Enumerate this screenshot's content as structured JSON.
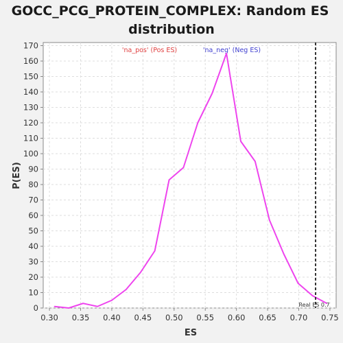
{
  "chart_data": {
    "type": "line",
    "title_line1": "GOCC_PCG_PROTEIN_COMPLEX: Random ES",
    "title_line2": "distribution",
    "xlabel": "ES",
    "ylabel": "P(ES)",
    "xlim": [
      0.29,
      0.76
    ],
    "ylim": [
      0,
      172
    ],
    "xticks": [
      0.3,
      0.35,
      0.4,
      0.45,
      0.5,
      0.55,
      0.6,
      0.65,
      0.7,
      0.75
    ],
    "xtick_labels": [
      "0.30",
      "0.35",
      "0.40",
      "0.45",
      "0.50",
      "0.55",
      "0.60",
      "0.65",
      "0.70",
      "0.75"
    ],
    "yticks": [
      0,
      10,
      20,
      30,
      40,
      50,
      60,
      70,
      80,
      90,
      100,
      110,
      120,
      130,
      140,
      150,
      160,
      170
    ],
    "ytick_labels": [
      "0",
      "10",
      "20",
      "30",
      "40",
      "50",
      "60",
      "70",
      "80",
      "90",
      "100",
      "110",
      "120",
      "130",
      "140",
      "150",
      "160",
      "170"
    ],
    "grid": true,
    "series": [
      {
        "color": "#ee44ee",
        "x": [
          0.308,
          0.331,
          0.354,
          0.377,
          0.4,
          0.423,
          0.446,
          0.469,
          0.492,
          0.515,
          0.538,
          0.561,
          0.584,
          0.607,
          0.63,
          0.653,
          0.676,
          0.699,
          0.722,
          0.745
        ],
        "y": [
          1,
          0,
          3,
          1,
          5,
          12,
          23,
          37,
          83,
          91,
          120,
          139,
          165,
          108,
          95,
          57,
          35,
          16,
          8,
          3
        ]
      }
    ],
    "legend": [
      {
        "label": "'na_pos' (Pos ES)",
        "color": "#e04040"
      },
      {
        "label": "'na_neg' (Neg ES)",
        "color": "#4040d0"
      }
    ],
    "real_es": {
      "value": 0.727,
      "label": "Real ES 0.7"
    }
  }
}
